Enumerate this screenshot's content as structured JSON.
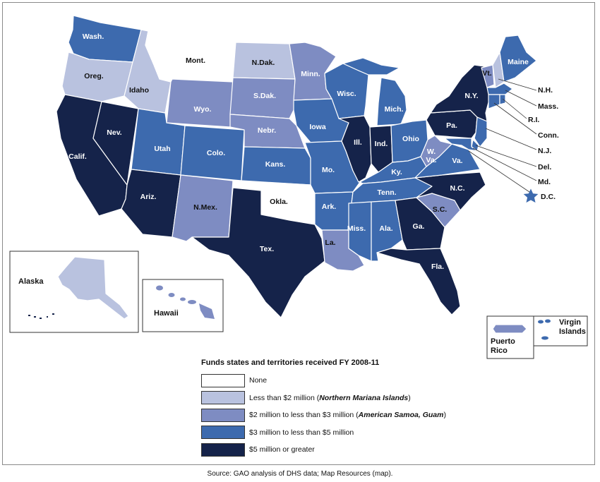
{
  "legend": {
    "title": "Funds states and territories received FY 2008-11",
    "items": [
      {
        "label": "None",
        "extra": "",
        "color": "#ffffff"
      },
      {
        "label": "Less than $2 million (",
        "extra": "Northern Mariana Islands",
        "color": "#b9c2df"
      },
      {
        "label": "$2 million to less than $3 million (",
        "extra": "American Samoa, Guam",
        "color": "#7e8cc2"
      },
      {
        "label": "$3 million to less than $5 million",
        "extra": "",
        "color": "#3d6aae"
      },
      {
        "label": "$5 million or greater",
        "extra": "",
        "color": "#15234a"
      }
    ]
  },
  "states": {
    "wa": "Wash.",
    "or": "Oreg.",
    "ca": "Calif.",
    "id": "Idaho",
    "nv": "Nev.",
    "mt": "Mont.",
    "wy": "Wyo.",
    "ut": "Utah",
    "az": "Ariz.",
    "co": "Colo.",
    "nm": "N.Mex.",
    "nd": "N.Dak.",
    "sd": "S.Dak.",
    "ne": "Nebr.",
    "ks": "Kans.",
    "ok": "Okla.",
    "tx": "Tex.",
    "mn": "Minn.",
    "ia": "Iowa",
    "mo": "Mo.",
    "ar": "Ark.",
    "la": "La.",
    "wi": "Wisc.",
    "il": "Ill.",
    "mi": "Mich.",
    "in": "Ind.",
    "oh": "Ohio",
    "ky": "Ky.",
    "tn": "Tenn.",
    "ms": "Miss.",
    "al": "Ala.",
    "ga": "Ga.",
    "fl": "Fla.",
    "sc": "S.C.",
    "nc": "N.C.",
    "va": "Va.",
    "wv1": "W.",
    "wv2": "Va.",
    "pa": "Pa.",
    "ny": "N.Y.",
    "vt": "Vt.",
    "me": "Maine"
  },
  "east_labels": {
    "nh": "N.H.",
    "ma": "Mass.",
    "ri": "R.I.",
    "ct": "Conn.",
    "nj": "N.J.",
    "de": "Del.",
    "md": "Md.",
    "dc": "D.C."
  },
  "insets": {
    "alaska": "Alaska",
    "hawaii": "Hawaii",
    "puerto_rico_1": "Puerto",
    "puerto_rico_2": "Rico",
    "virgin_islands_1": "Virgin",
    "virgin_islands_2": "Islands"
  },
  "source": "Source: GAO analysis of DHS data; Map Resources (map)."
}
